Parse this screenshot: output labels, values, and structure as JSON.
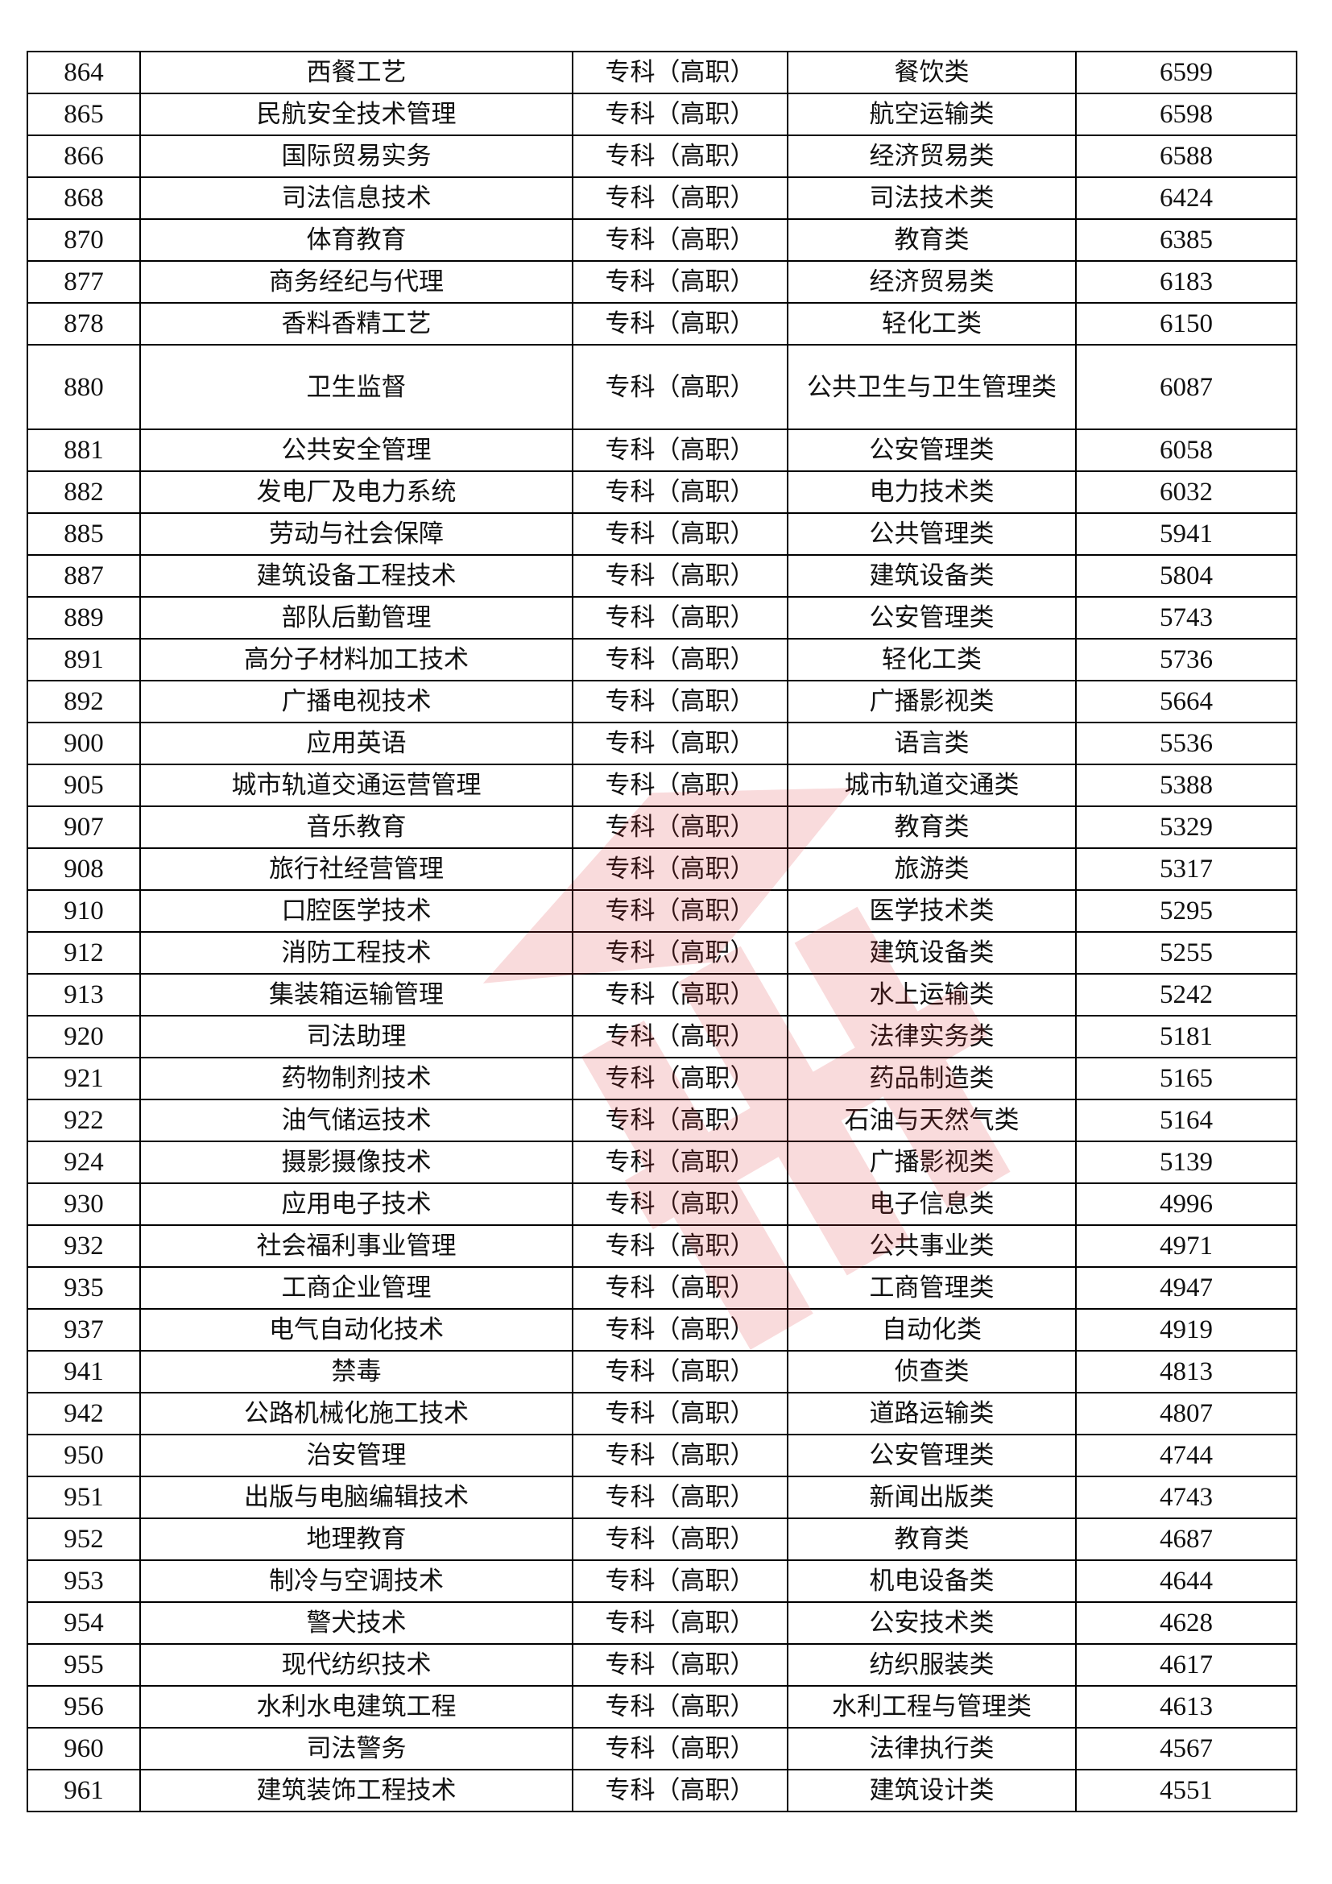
{
  "colors": {
    "watermark": "#e0282e",
    "border": "#000000"
  },
  "rows": [
    [
      "864",
      "西餐工艺",
      "专科（高职）",
      "餐饮类",
      "6599"
    ],
    [
      "865",
      "民航安全技术管理",
      "专科（高职）",
      "航空运输类",
      "6598"
    ],
    [
      "866",
      "国际贸易实务",
      "专科（高职）",
      "经济贸易类",
      "6588"
    ],
    [
      "868",
      "司法信息技术",
      "专科（高职）",
      "司法技术类",
      "6424"
    ],
    [
      "870",
      "体育教育",
      "专科（高职）",
      "教育类",
      "6385"
    ],
    [
      "877",
      "商务经纪与代理",
      "专科（高职）",
      "经济贸易类",
      "6183"
    ],
    [
      "878",
      "香料香精工艺",
      "专科（高职）",
      "轻化工类",
      "6150"
    ],
    [
      "880",
      "卫生监督",
      "专科（高职）",
      "公共卫生与卫生管理类",
      "6087"
    ],
    [
      "881",
      "公共安全管理",
      "专科（高职）",
      "公安管理类",
      "6058"
    ],
    [
      "882",
      "发电厂及电力系统",
      "专科（高职）",
      "电力技术类",
      "6032"
    ],
    [
      "885",
      "劳动与社会保障",
      "专科（高职）",
      "公共管理类",
      "5941"
    ],
    [
      "887",
      "建筑设备工程技术",
      "专科（高职）",
      "建筑设备类",
      "5804"
    ],
    [
      "889",
      "部队后勤管理",
      "专科（高职）",
      "公安管理类",
      "5743"
    ],
    [
      "891",
      "高分子材料加工技术",
      "专科（高职）",
      "轻化工类",
      "5736"
    ],
    [
      "892",
      "广播电视技术",
      "专科（高职）",
      "广播影视类",
      "5664"
    ],
    [
      "900",
      "应用英语",
      "专科（高职）",
      "语言类",
      "5536"
    ],
    [
      "905",
      "城市轨道交通运营管理",
      "专科（高职）",
      "城市轨道交通类",
      "5388"
    ],
    [
      "907",
      "音乐教育",
      "专科（高职）",
      "教育类",
      "5329"
    ],
    [
      "908",
      "旅行社经营管理",
      "专科（高职）",
      "旅游类",
      "5317"
    ],
    [
      "910",
      "口腔医学技术",
      "专科（高职）",
      "医学技术类",
      "5295"
    ],
    [
      "912",
      "消防工程技术",
      "专科（高职）",
      "建筑设备类",
      "5255"
    ],
    [
      "913",
      "集装箱运输管理",
      "专科（高职）",
      "水上运输类",
      "5242"
    ],
    [
      "920",
      "司法助理",
      "专科（高职）",
      "法律实务类",
      "5181"
    ],
    [
      "921",
      "药物制剂技术",
      "专科（高职）",
      "药品制造类",
      "5165"
    ],
    [
      "922",
      "油气储运技术",
      "专科（高职）",
      "石油与天然气类",
      "5164"
    ],
    [
      "924",
      "摄影摄像技术",
      "专科（高职）",
      "广播影视类",
      "5139"
    ],
    [
      "930",
      "应用电子技术",
      "专科（高职）",
      "电子信息类",
      "4996"
    ],
    [
      "932",
      "社会福利事业管理",
      "专科（高职）",
      "公共事业类",
      "4971"
    ],
    [
      "935",
      "工商企业管理",
      "专科（高职）",
      "工商管理类",
      "4947"
    ],
    [
      "937",
      "电气自动化技术",
      "专科（高职）",
      "自动化类",
      "4919"
    ],
    [
      "941",
      "禁毒",
      "专科（高职）",
      "侦查类",
      "4813"
    ],
    [
      "942",
      "公路机械化施工技术",
      "专科（高职）",
      "道路运输类",
      "4807"
    ],
    [
      "950",
      "治安管理",
      "专科（高职）",
      "公安管理类",
      "4744"
    ],
    [
      "951",
      "出版与电脑编辑技术",
      "专科（高职）",
      "新闻出版类",
      "4743"
    ],
    [
      "952",
      "地理教育",
      "专科（高职）",
      "教育类",
      "4687"
    ],
    [
      "953",
      "制冷与空调技术",
      "专科（高职）",
      "机电设备类",
      "4644"
    ],
    [
      "954",
      "警犬技术",
      "专科（高职）",
      "公安技术类",
      "4628"
    ],
    [
      "955",
      "现代纺织技术",
      "专科（高职）",
      "纺织服装类",
      "4617"
    ],
    [
      "956",
      "水利水电建筑工程",
      "专科（高职）",
      "水利工程与管理类",
      "4613"
    ],
    [
      "960",
      "司法警务",
      "专科（高职）",
      "法律执行类",
      "4567"
    ],
    [
      "961",
      "建筑装饰工程技术",
      "专科（高职）",
      "建筑设计类",
      "4551"
    ]
  ]
}
